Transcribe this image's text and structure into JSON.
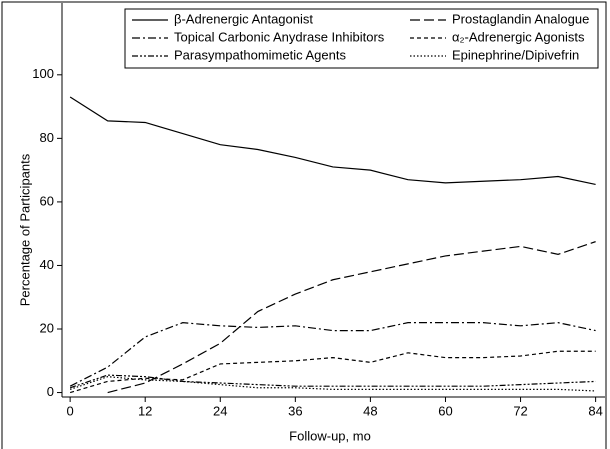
{
  "chart_data": {
    "type": "line",
    "x_label": "Follow-up, mo",
    "y_label": "Percentage of Participants",
    "x": [
      0,
      6,
      12,
      18,
      24,
      30,
      36,
      42,
      48,
      54,
      60,
      66,
      72,
      78,
      84
    ],
    "series": [
      {
        "name": "β-Adrenergic Antagonist",
        "color": "#000000",
        "dash": "none",
        "values": [
          93,
          85.5,
          85,
          81.5,
          78,
          76.5,
          74,
          71,
          70,
          67,
          66,
          66.5,
          67,
          68,
          65.5
        ]
      },
      {
        "name": "Prostaglandin Analogue",
        "color": "#000000",
        "dash": "10 4",
        "values": [
          null,
          0,
          3,
          9,
          15.5,
          25.5,
          31,
          35.5,
          38,
          40.5,
          43,
          44.5,
          46,
          43.5,
          47.5
        ]
      },
      {
        "name": "Topical Carbonic Anydrase Inhibitors",
        "color": "#000000",
        "dash": "8 3 2 3",
        "values": [
          2,
          8,
          17.5,
          22,
          21,
          20.5,
          21,
          19.5,
          19.5,
          22,
          22,
          22,
          21,
          22,
          19.5
        ]
      },
      {
        "name": "α₂-Adrenergic Agonists",
        "color": "#000000",
        "dash": "4 3",
        "values": [
          0,
          3.5,
          4.5,
          4,
          9,
          9.5,
          10,
          11,
          9.5,
          12.5,
          11,
          11,
          11.5,
          13,
          13
        ]
      },
      {
        "name": "Parasympathomimetic Agents",
        "color": "#000000",
        "dash": "6 2 2 2 2 2",
        "values": [
          1.5,
          5.5,
          5,
          3.5,
          3,
          2.5,
          2,
          2,
          2,
          2,
          2,
          2,
          2.5,
          3,
          3.5
        ]
      },
      {
        "name": "Epinephrine/Dipivefrin",
        "color": "#000000",
        "dash": "1.5 2",
        "values": [
          1,
          5,
          4,
          3.5,
          2.5,
          1.5,
          1.5,
          1,
          1,
          1,
          1,
          1,
          1,
          1,
          0.5
        ]
      }
    ],
    "xlim": [
      -1.3,
      85.5
    ],
    "xticks": [
      0,
      12,
      24,
      36,
      48,
      60,
      72,
      84
    ],
    "ylim": [
      -1.4,
      122.6
    ],
    "yticks": [
      0,
      20,
      40,
      60,
      80,
      100
    ],
    "grid": false,
    "legend": "top"
  }
}
